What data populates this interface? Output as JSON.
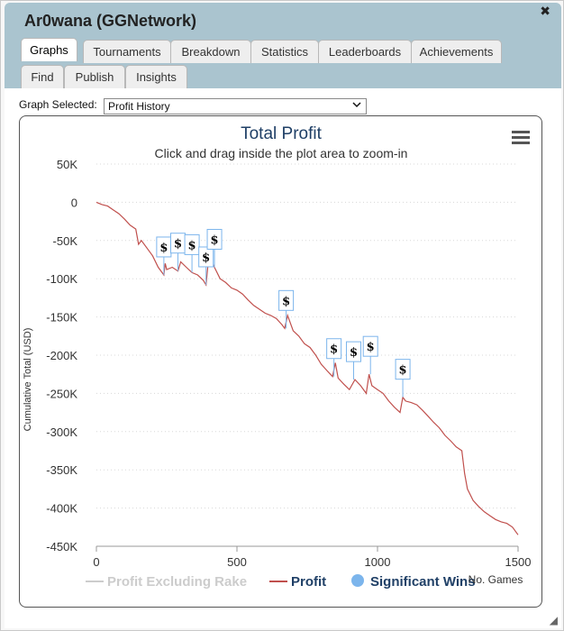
{
  "window": {
    "title": "Ar0wana (GGNetwork)",
    "close_glyph": "✖"
  },
  "tabs": [
    {
      "label": "Graphs",
      "active": true
    },
    {
      "label": "Tournaments"
    },
    {
      "label": "Breakdown"
    },
    {
      "label": "Statistics"
    },
    {
      "label": "Leaderboards"
    },
    {
      "label": "Achievements"
    },
    {
      "label": "Find"
    },
    {
      "label": "Publish"
    },
    {
      "label": "Insights"
    }
  ],
  "graph_selector": {
    "label": "Graph Selected:",
    "value": "Profit History",
    "chevron_icon": "chevron-down-icon"
  },
  "menu_icon": "hamburger-menu-icon",
  "resize_icon": "resize-grip-icon",
  "colors": {
    "header_bg": "#aac4cf",
    "title": "#1f3f66",
    "profit_line": "#c0504d",
    "excluding_rake": "#cccccc",
    "significant_wins": "#7cb5ec"
  },
  "chart_data": {
    "type": "line",
    "title": "Total Profit",
    "subtitle": "Click and drag inside the plot area to zoom-in",
    "xlabel": "No. Games",
    "ylabel": "Cumulative Total (USD)",
    "xlim": [
      0,
      1500
    ],
    "ylim": [
      -450000,
      50000
    ],
    "x_ticks": [
      "0",
      "500",
      "1000",
      "1500"
    ],
    "y_ticks": [
      "50K",
      "0",
      "-50K",
      "-100K",
      "-150K",
      "-200K",
      "-250K",
      "-300K",
      "-350K",
      "-400K",
      "-450K"
    ],
    "grid": true,
    "legend": [
      {
        "label": "Profit Excluding Rake",
        "style": "line",
        "hidden": true
      },
      {
        "label": "Profit",
        "style": "line"
      },
      {
        "label": "Significant Wins",
        "style": "marker"
      }
    ],
    "legend_position": "bottom",
    "series": [
      {
        "name": "Profit",
        "x": [
          0,
          20,
          40,
          60,
          80,
          100,
          120,
          140,
          150,
          160,
          180,
          200,
          220,
          240,
          245,
          250,
          270,
          290,
          300,
          320,
          340,
          360,
          380,
          390,
          400,
          420,
          440,
          460,
          480,
          500,
          520,
          540,
          560,
          580,
          600,
          620,
          640,
          660,
          670,
          680,
          700,
          720,
          740,
          760,
          780,
          800,
          820,
          840,
          850,
          860,
          880,
          900,
          920,
          940,
          960,
          970,
          980,
          1000,
          1020,
          1040,
          1060,
          1080,
          1090,
          1100,
          1120,
          1140,
          1160,
          1180,
          1200,
          1220,
          1240,
          1260,
          1280,
          1300,
          1310,
          1320,
          1340,
          1360,
          1380,
          1400,
          1420,
          1440,
          1460,
          1480,
          1500
        ],
        "y": [
          0,
          -3000,
          -5000,
          -10000,
          -15000,
          -22000,
          -30000,
          -35000,
          -55000,
          -50000,
          -60000,
          -70000,
          -85000,
          -95000,
          -80000,
          -88000,
          -85000,
          -90000,
          -78000,
          -85000,
          -92000,
          -95000,
          -102000,
          -108000,
          -70000,
          -85000,
          -100000,
          -105000,
          -112000,
          -115000,
          -120000,
          -128000,
          -135000,
          -140000,
          -145000,
          -148000,
          -152000,
          -160000,
          -165000,
          -148000,
          -168000,
          -175000,
          -185000,
          -190000,
          -200000,
          -212000,
          -220000,
          -228000,
          -210000,
          -230000,
          -238000,
          -245000,
          -232000,
          -240000,
          -250000,
          -225000,
          -240000,
          -245000,
          -250000,
          -260000,
          -268000,
          -275000,
          -255000,
          -260000,
          -262000,
          -265000,
          -272000,
          -280000,
          -288000,
          -295000,
          -305000,
          -312000,
          -320000,
          -325000,
          -355000,
          -375000,
          -390000,
          -398000,
          -405000,
          -410000,
          -415000,
          -418000,
          -420000,
          -425000,
          -435000
        ]
      }
    ],
    "significant_wins": [
      {
        "x": 240,
        "y": -95000,
        "label": "$"
      },
      {
        "x": 290,
        "y": -90000,
        "label": "$"
      },
      {
        "x": 340,
        "y": -92000,
        "label": "$"
      },
      {
        "x": 390,
        "y": -108000,
        "label": "$"
      },
      {
        "x": 420,
        "y": -85000,
        "label": "$"
      },
      {
        "x": 675,
        "y": -165000,
        "label": "$"
      },
      {
        "x": 845,
        "y": -228000,
        "label": "$"
      },
      {
        "x": 915,
        "y": -232000,
        "label": "$"
      },
      {
        "x": 975,
        "y": -225000,
        "label": "$"
      },
      {
        "x": 1090,
        "y": -255000,
        "label": "$"
      }
    ]
  }
}
